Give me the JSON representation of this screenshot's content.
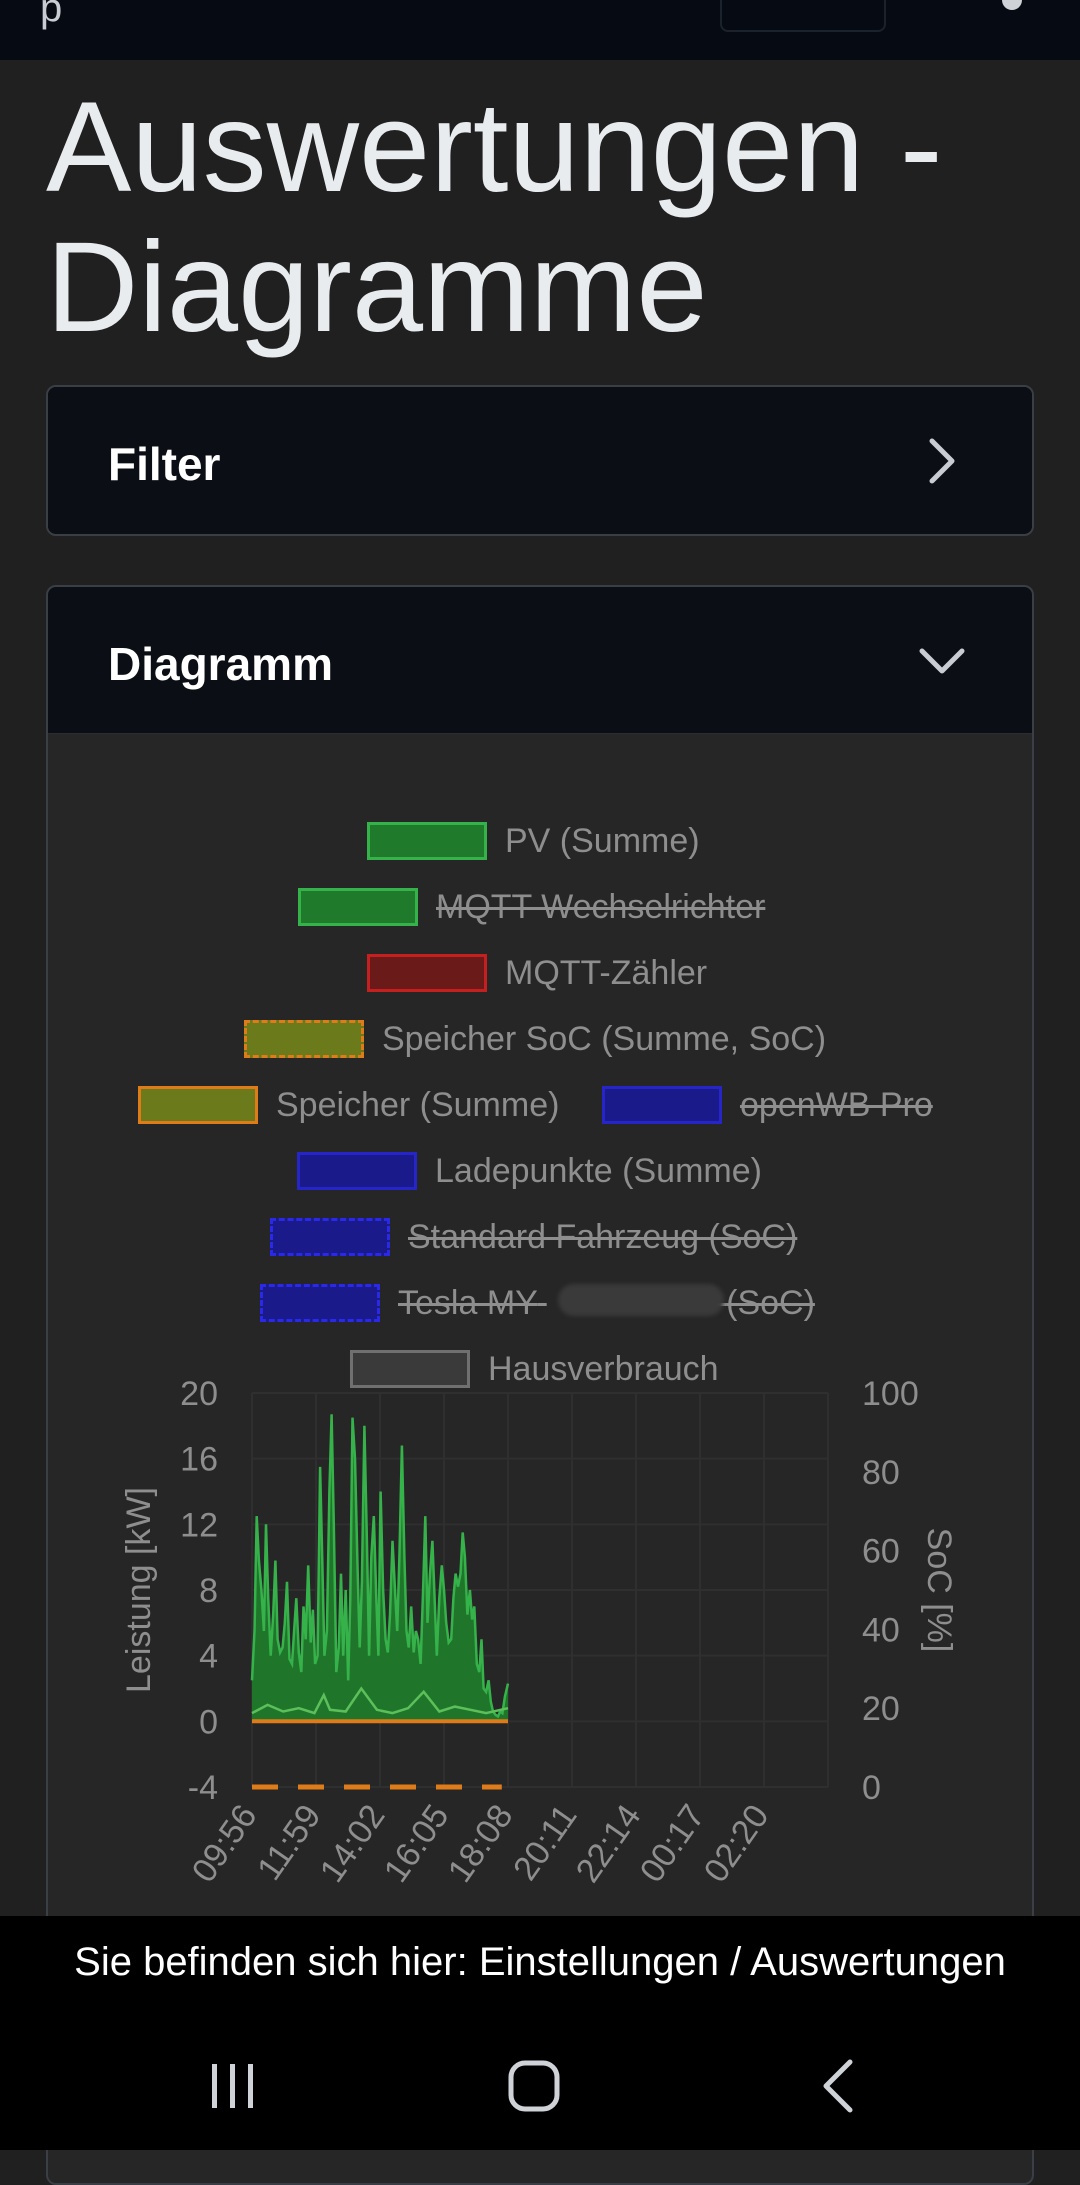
{
  "page": {
    "title": "Auswertungen - Diagramme"
  },
  "filter_card": {
    "title": "Filter"
  },
  "diagram_card": {
    "title": "Diagramm"
  },
  "legend": [
    {
      "label": "PV (Summe)",
      "hidden": false,
      "fill": "#1f7a2b",
      "border": "#36b24a",
      "dashed": false
    },
    {
      "label": "MQTT Wechselrichter",
      "hidden": true,
      "fill": "#1f7a2b",
      "border": "#36b24a",
      "dashed": false
    },
    {
      "label": "MQTT-Zähler",
      "hidden": false,
      "fill": "#6b1a1a",
      "border": "#c42020",
      "dashed": false
    },
    {
      "label": "Speicher SoC (Summe, SoC)",
      "hidden": false,
      "fill": "#6b7a1a",
      "border": "#e07b1a",
      "dashed": true
    },
    {
      "label": "Speicher (Summe)",
      "hidden": false,
      "fill": "#6b7a1a",
      "border": "#e07b1a",
      "dashed": false
    },
    {
      "label": "openWB Pro",
      "hidden": true,
      "fill": "#1a1a8a",
      "border": "#2626c8",
      "dashed": false
    },
    {
      "label": "Ladepunkte (Summe)",
      "hidden": false,
      "fill": "#1a1a8a",
      "border": "#2626c8",
      "dashed": false
    },
    {
      "label": "Standard Fahrzeug (SoC)",
      "hidden": true,
      "fill": "#1a1a8a",
      "border": "#2a2ae6",
      "dashed": true
    },
    {
      "label": "Tesla MY",
      "hidden": true,
      "fill": "#1a1a8a",
      "border": "#2a2ae6",
      "dashed": true
    },
    {
      "label": "Hausverbrauch",
      "hidden": false,
      "fill": "#3a3a3a",
      "border": "#707070",
      "dashed": false
    }
  ],
  "legend_tesla_suffix": "(SoC)",
  "chart_data": {
    "type": "area",
    "x_ticks": [
      "09:56",
      "11:59",
      "14:02",
      "16:05",
      "18:08",
      "20:11",
      "22:14",
      "00:17",
      "02:20"
    ],
    "ylabel": "Leistung [kW]",
    "y2label": "SoC [%]",
    "ylim": [
      -4,
      20
    ],
    "y_ticks": [
      20,
      16,
      12,
      8,
      4,
      0,
      -4
    ],
    "y2lim": [
      0,
      100
    ],
    "y2_ticks": [
      100,
      80,
      60,
      40,
      20,
      0
    ],
    "grid": true,
    "legend_position": "top",
    "series": [
      {
        "name": "PV (Summe)",
        "color": "#36b24a",
        "x_hours": [
          0,
          0.08,
          0.15,
          0.22,
          0.3,
          0.38,
          0.45,
          0.52,
          0.6,
          0.68,
          0.75,
          0.82,
          0.9,
          0.98,
          1.05,
          1.12,
          1.2,
          1.28,
          1.35,
          1.42,
          1.5,
          1.58,
          1.65,
          1.72,
          1.8,
          1.88,
          1.95,
          2.02,
          2.1,
          2.18,
          2.25,
          2.32,
          2.4,
          2.48,
          2.55,
          2.62,
          2.7,
          2.78,
          2.85,
          2.92,
          3.0,
          3.08,
          3.15,
          3.22,
          3.3,
          3.38,
          3.45,
          3.52,
          3.6,
          3.68,
          3.75,
          3.82,
          3.9,
          3.98,
          4.05,
          4.12,
          4.2,
          4.28,
          4.35,
          4.42,
          4.5,
          4.58,
          4.65,
          4.72,
          4.8,
          4.88,
          4.95,
          5.02,
          5.1,
          5.18,
          5.25,
          5.32,
          5.4,
          5.48,
          5.55,
          5.62,
          5.7,
          5.78,
          5.85,
          5.92,
          6.0,
          6.08,
          6.15,
          6.22,
          6.3,
          6.38,
          6.45,
          6.52,
          6.6,
          6.68,
          6.75,
          6.82,
          6.9,
          6.98,
          7.05,
          7.12,
          7.2,
          7.28,
          7.35,
          7.42,
          7.5,
          7.58,
          7.65,
          7.72,
          7.8,
          7.88,
          7.95,
          8.02,
          8.1,
          8.2
        ],
        "values": [
          2.5,
          5.5,
          12.5,
          9.8,
          8.0,
          5.5,
          12.0,
          7.5,
          4.0,
          6.5,
          9.8,
          5.0,
          4.2,
          4.5,
          6.0,
          8.5,
          3.8,
          3.5,
          5.5,
          7.5,
          4.2,
          3.0,
          7.0,
          5.0,
          9.5,
          4.8,
          6.8,
          3.5,
          4.0,
          15.5,
          10.0,
          4.0,
          5.5,
          14.0,
          18.7,
          12.0,
          3.0,
          4.5,
          9.0,
          4.0,
          8.0,
          2.5,
          7.5,
          18.5,
          16.0,
          9.5,
          4.5,
          8.5,
          18.0,
          11.0,
          4.0,
          10.0,
          12.5,
          7.5,
          4.0,
          14.0,
          8.0,
          5.0,
          4.2,
          6.5,
          11.0,
          8.0,
          5.5,
          10.0,
          16.8,
          10.0,
          5.5,
          4.5,
          7.0,
          4.2,
          5.5,
          5.0,
          3.5,
          8.0,
          12.5,
          6.0,
          9.0,
          11.0,
          7.5,
          4.0,
          7.5,
          9.5,
          8.0,
          6.0,
          4.8,
          5.0,
          7.5,
          9.0,
          8.2,
          9.0,
          11.5,
          10.0,
          6.5,
          8.0,
          6.2,
          7.0,
          3.5,
          3.0,
          5.0,
          2.0,
          1.8,
          2.5,
          1.2,
          0.6,
          0.4,
          0.3,
          0.6,
          0.5,
          1.5,
          2.3
        ]
      },
      {
        "name": "Hausverbrauch",
        "color": "#5cbf5a",
        "x_hours": [
          0,
          0.5,
          1.0,
          1.5,
          2.0,
          2.3,
          2.5,
          3.0,
          3.5,
          4.0,
          4.5,
          5.0,
          5.5,
          6.0,
          6.5,
          7.0,
          7.5,
          8.2
        ],
        "values": [
          0.5,
          1.0,
          0.6,
          0.8,
          0.5,
          1.6,
          0.7,
          0.6,
          2.0,
          0.7,
          0.5,
          0.8,
          1.8,
          0.6,
          0.9,
          0.7,
          0.5,
          0.8
        ]
      },
      {
        "name": "Speicher (Summe)",
        "color": "#e07b1a",
        "x_hours": [
          0,
          8.2
        ],
        "values": [
          0,
          0
        ]
      },
      {
        "name": "Speicher SoC (Summe, SoC)",
        "color": "#e07b1a",
        "axis": "y2",
        "dashed": true,
        "x_hours": [
          0,
          8.0
        ],
        "values": [
          0,
          0
        ]
      }
    ]
  },
  "breadcrumb": {
    "text": "Sie befinden sich hier: Einstellungen / Auswertungen"
  },
  "navbar": {
    "recent": "recent-apps",
    "home": "home",
    "back": "back"
  }
}
